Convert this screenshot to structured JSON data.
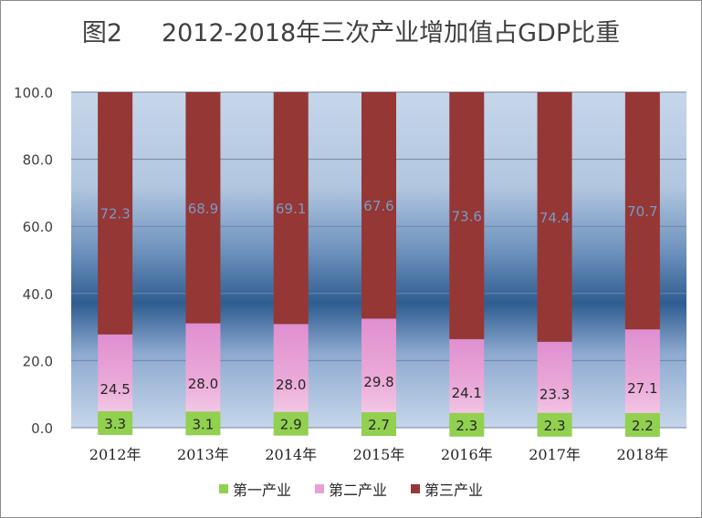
{
  "chart_data": {
    "type": "bar",
    "stacked": true,
    "title": "图2     2012-2018年三次产业增加值占GDP比重",
    "categories": [
      "2012年",
      "2013年",
      "2014年",
      "2015年",
      "2016年",
      "2017年",
      "2018年"
    ],
    "series": [
      {
        "name": "第一产业",
        "color": "#92d050",
        "values": [
          3.3,
          3.1,
          2.9,
          2.7,
          2.3,
          2.3,
          2.2
        ]
      },
      {
        "name": "第二产业",
        "color": "#e6a0d8",
        "values": [
          24.5,
          28.0,
          28.0,
          29.8,
          24.1,
          23.3,
          27.1
        ]
      },
      {
        "name": "第三产业",
        "color": "#953735",
        "values": [
          72.3,
          68.9,
          69.1,
          67.6,
          73.6,
          74.4,
          70.7
        ]
      }
    ],
    "ylim": [
      0,
      100
    ],
    "yticks": [
      "0.0",
      "20.0",
      "40.0",
      "60.0",
      "80.0",
      "100.0"
    ],
    "grid": true,
    "legend_position": "bottom"
  }
}
